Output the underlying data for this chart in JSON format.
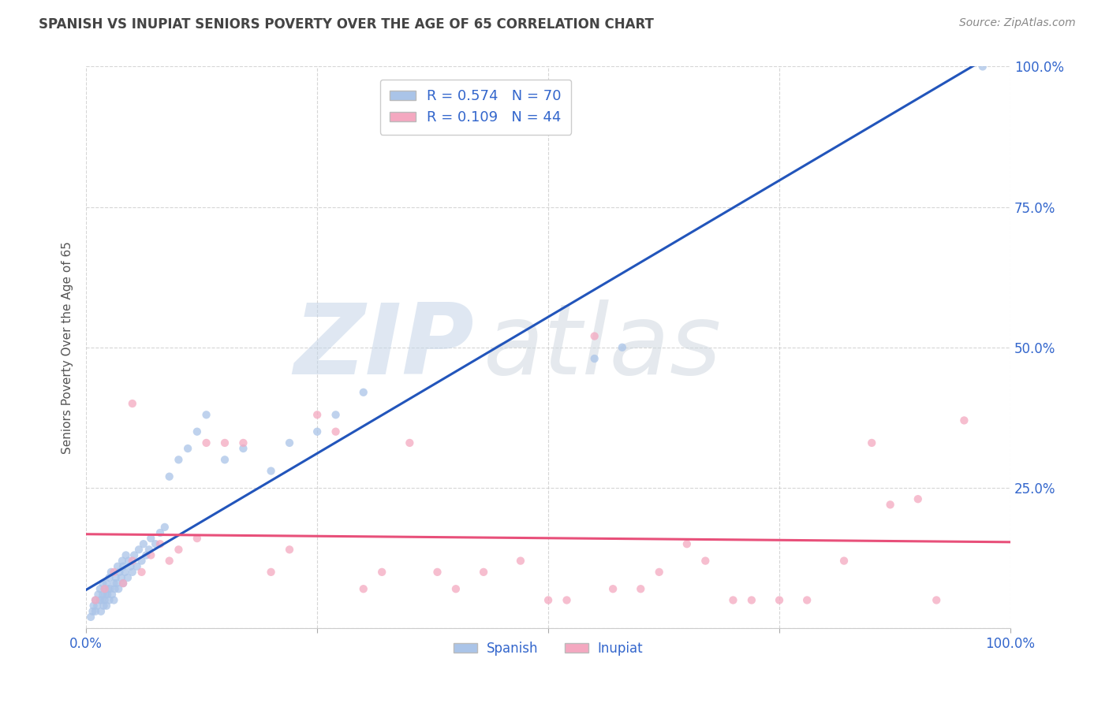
{
  "title": "SPANISH VS INUPIAT SENIORS POVERTY OVER THE AGE OF 65 CORRELATION CHART",
  "source_text": "Source: ZipAtlas.com",
  "ylabel": "Seniors Poverty Over the Age of 65",
  "xlabel": "",
  "bg_color": "#ffffff",
  "plot_bg_color": "#ffffff",
  "grid_color": "#cccccc",
  "spanish_color": "#aac4e8",
  "inupiat_color": "#f4a8c0",
  "spanish_line_color": "#2255bb",
  "inupiat_line_color": "#e8507a",
  "r_spanish": 0.574,
  "n_spanish": 70,
  "r_inupiat": 0.109,
  "n_inupiat": 44,
  "legend_text_color": "#3366cc",
  "title_color": "#444444",
  "axis_label_color": "#555555",
  "tick_label_color": "#3366cc",
  "right_tick_color": "#3366cc",
  "spanish_x": [
    0.005,
    0.007,
    0.008,
    0.01,
    0.01,
    0.012,
    0.013,
    0.015,
    0.015,
    0.016,
    0.017,
    0.018,
    0.018,
    0.019,
    0.02,
    0.02,
    0.021,
    0.022,
    0.022,
    0.023,
    0.024,
    0.025,
    0.025,
    0.026,
    0.027,
    0.028,
    0.03,
    0.03,
    0.031,
    0.032,
    0.033,
    0.034,
    0.035,
    0.036,
    0.038,
    0.039,
    0.04,
    0.04,
    0.042,
    0.043,
    0.045,
    0.046,
    0.048,
    0.05,
    0.052,
    0.055,
    0.057,
    0.06,
    0.062,
    0.065,
    0.068,
    0.07,
    0.075,
    0.08,
    0.085,
    0.09,
    0.1,
    0.11,
    0.12,
    0.13,
    0.15,
    0.17,
    0.2,
    0.22,
    0.25,
    0.27,
    0.3,
    0.55,
    0.58,
    0.97
  ],
  "spanish_y": [
    0.02,
    0.03,
    0.04,
    0.03,
    0.05,
    0.04,
    0.06,
    0.05,
    0.07,
    0.03,
    0.05,
    0.06,
    0.08,
    0.04,
    0.05,
    0.07,
    0.06,
    0.04,
    0.08,
    0.06,
    0.07,
    0.05,
    0.09,
    0.07,
    0.1,
    0.06,
    0.05,
    0.08,
    0.07,
    0.09,
    0.08,
    0.11,
    0.07,
    0.1,
    0.09,
    0.12,
    0.08,
    0.11,
    0.1,
    0.13,
    0.09,
    0.12,
    0.11,
    0.1,
    0.13,
    0.11,
    0.14,
    0.12,
    0.15,
    0.13,
    0.14,
    0.16,
    0.15,
    0.17,
    0.18,
    0.27,
    0.3,
    0.32,
    0.35,
    0.38,
    0.3,
    0.32,
    0.28,
    0.33,
    0.35,
    0.38,
    0.42,
    0.48,
    0.5,
    1.0
  ],
  "inupiat_x": [
    0.01,
    0.02,
    0.03,
    0.04,
    0.05,
    0.05,
    0.06,
    0.07,
    0.08,
    0.09,
    0.1,
    0.12,
    0.13,
    0.15,
    0.17,
    0.2,
    0.22,
    0.25,
    0.27,
    0.3,
    0.32,
    0.35,
    0.38,
    0.4,
    0.43,
    0.47,
    0.5,
    0.52,
    0.55,
    0.57,
    0.6,
    0.62,
    0.65,
    0.67,
    0.7,
    0.72,
    0.75,
    0.78,
    0.82,
    0.85,
    0.87,
    0.9,
    0.92,
    0.95
  ],
  "inupiat_y": [
    0.05,
    0.07,
    0.1,
    0.08,
    0.12,
    0.4,
    0.1,
    0.13,
    0.15,
    0.12,
    0.14,
    0.16,
    0.33,
    0.33,
    0.33,
    0.1,
    0.14,
    0.38,
    0.35,
    0.07,
    0.1,
    0.33,
    0.1,
    0.07,
    0.1,
    0.12,
    0.05,
    0.05,
    0.52,
    0.07,
    0.07,
    0.1,
    0.15,
    0.12,
    0.05,
    0.05,
    0.05,
    0.05,
    0.12,
    0.33,
    0.22,
    0.23,
    0.05,
    0.37
  ],
  "xlim": [
    0.0,
    1.0
  ],
  "ylim": [
    0.0,
    1.0
  ],
  "xtick_positions": [
    0.0,
    0.25,
    0.5,
    0.75,
    1.0
  ],
  "xtick_labels": [
    "0.0%",
    "",
    "",
    "",
    "100.0%"
  ],
  "ytick_positions": [
    0.0,
    0.25,
    0.5,
    0.75,
    1.0
  ],
  "ytick_right_labels": [
    "",
    "25.0%",
    "50.0%",
    "75.0%",
    "100.0%"
  ],
  "marker_size": 55,
  "marker_alpha": 0.75,
  "line_width": 2.2,
  "watermark_zip_color": "#c5d5e8",
  "watermark_atlas_color": "#d0d8e0",
  "watermark_alpha": 0.55
}
